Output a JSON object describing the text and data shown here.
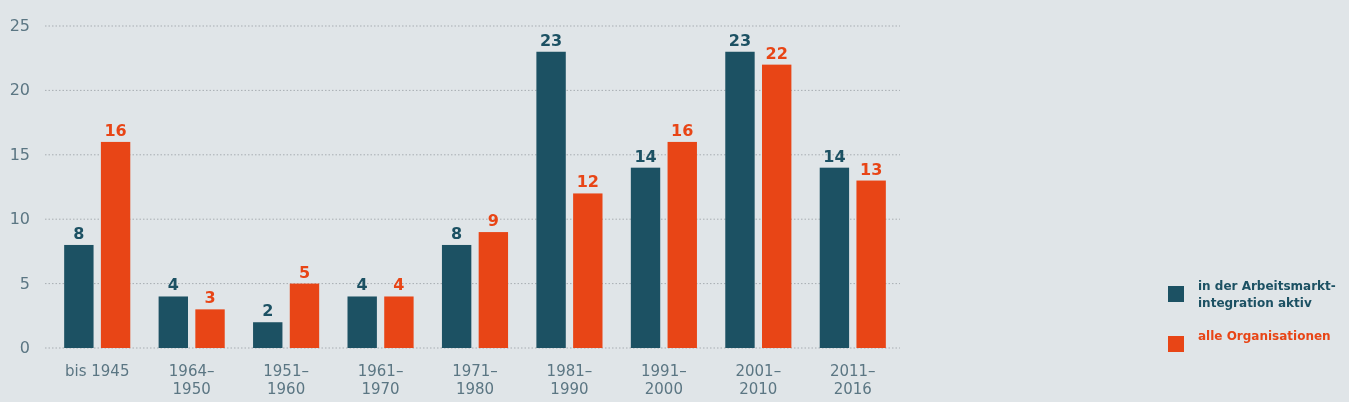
{
  "chart_data": {
    "type": "bar",
    "categories": [
      "bis 1945",
      "1964–1950",
      "1951–1960",
      "1961–1970",
      "1971–1980",
      "1981–1990",
      "1991–2000",
      "2001–2010",
      "2011–2016"
    ],
    "series": [
      {
        "name": "in der Arbeitsmarkt-integration aktiv",
        "color": "#1c5163",
        "values": [
          8,
          4,
          2,
          4,
          8,
          23,
          14,
          23,
          14
        ]
      },
      {
        "name": "alle Organisationen",
        "color": "#e84516",
        "values": [
          16,
          3,
          5,
          4,
          9,
          12,
          16,
          22,
          13
        ]
      }
    ],
    "ylim": [
      0,
      25
    ],
    "yticks": [
      0,
      5,
      10,
      15,
      20,
      25
    ],
    "grid": "y",
    "data_labels": true,
    "legend": "bottom right"
  }
}
